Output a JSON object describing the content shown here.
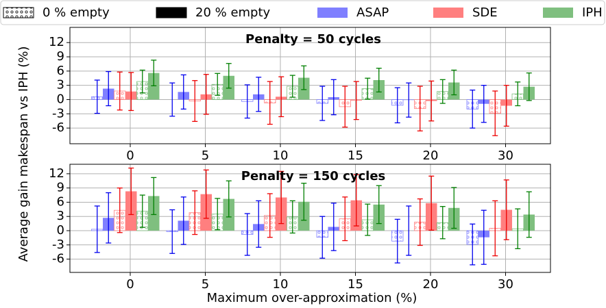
{
  "chart_data": {
    "type": "bar",
    "xlabel": "Maximum over-approximation (%)",
    "ylabel": "Average gain makespan vs IPH (%)",
    "categories": [
      "0",
      "5",
      "10",
      "15",
      "20",
      "30"
    ],
    "variants": [
      "0 % empty",
      "20 % empty"
    ],
    "variant_colors": [
      "#ffffff",
      "#000000"
    ],
    "methods": [
      {
        "name": "ASAP",
        "color": "#7f7fff",
        "edge": "#0000ee"
      },
      {
        "name": "SDE",
        "color": "#ff7f7f",
        "edge": "#ee0000"
      },
      {
        "name": "IPH",
        "color": "#7fbf7f",
        "edge": "#007f00"
      }
    ],
    "grid": true,
    "yticks": [
      -6,
      -3,
      0,
      3,
      6,
      9,
      12
    ],
    "panels": [
      {
        "title": "Penalty = 50 cycles",
        "ylim": [
          -9.3,
          15.2
        ],
        "series": [
          {
            "variants": [
              {
                "values": [
                  0.6,
                  0,
                  -0.4,
                  -0.8,
                  -1.2,
                  -2.0
                ],
                "errors": [
                  3.5,
                  3.5,
                  3.5,
                  3.6,
                  3.7,
                  4.0
                ]
              },
              {
                "values": [
                  2.3,
                  1.6,
                  1.1,
                  0.5,
                  -0.1,
                  -0.9
                ],
                "errors": [
                  3.6,
                  3.6,
                  3.6,
                  3.7,
                  3.6,
                  3.9
                ]
              }
            ]
          },
          {
            "variants": [
              {
                "values": [
                  1.8,
                  -0.3,
                  -0.7,
                  -1.5,
                  -1.9,
                  -2.9
                ],
                "errors": [
                  4.0,
                  4.3,
                  4.5,
                  4.3,
                  4.7,
                  4.7
                ]
              },
              {
                "values": [
                  1.7,
                  1.1,
                  0.6,
                  -0.2,
                  -0.3,
                  -1.3
                ],
                "errors": [
                  4.0,
                  4.2,
                  4.2,
                  4.0,
                  4.2,
                  4.3
                ]
              }
            ]
          },
          {
            "variants": [
              {
                "values": [
                  3.8,
                  3.2,
                  2.8,
                  2.3,
                  1.7,
                  1.2
                ],
                "errors": [
                  2.4,
                  2.3,
                  2.3,
                  2.2,
                  2.5,
                  2.5
                ]
              },
              {
                "values": [
                  5.6,
                  5.0,
                  4.6,
                  4.1,
                  3.6,
                  2.7
                ],
                "errors": [
                  2.7,
                  2.6,
                  2.5,
                  2.5,
                  2.6,
                  2.9
                ]
              }
            ]
          }
        ]
      },
      {
        "title": "Penalty = 150 cycles",
        "ylim": [
          -8.8,
          14
        ],
        "series": [
          {
            "variants": [
              {
                "values": [
                  0.3,
                  -0.2,
                  -0.8,
                  -1.4,
                  -2.2,
                  -2.9
                ],
                "errors": [
                  4.9,
                  4.6,
                  4.4,
                  4.4,
                  4.6,
                  4.3
                ]
              },
              {
                "values": [
                  2.7,
                  2.1,
                  1.4,
                  0.8,
                  0.0,
                  -1.4
                ],
                "errors": [
                  5.3,
                  5.0,
                  4.9,
                  5.0,
                  5.2,
                  5.7
                ]
              }
            ]
          },
          {
            "variants": [
              {
                "values": [
                  4.3,
                  3.8,
                  3.2,
                  2.5,
                  1.8,
                  0.5
                ],
                "errors": [
                  4.7,
                  4.6,
                  4.6,
                  4.6,
                  4.9,
                  5.8
                ]
              },
              {
                "values": [
                  8.3,
                  7.7,
                  7.0,
                  6.4,
                  5.8,
                  4.4
                ],
                "errors": [
                  4.9,
                  5.1,
                  5.5,
                  5.4,
                  5.7,
                  6.3
                ]
              }
            ]
          },
          {
            "variants": [
              {
                "values": [
                  4.1,
                  3.5,
                  2.9,
                  2.3,
                  1.7,
                  0.4
                ],
                "errors": [
                  3.4,
                  3.3,
                  3.4,
                  3.3,
                  3.4,
                  4.2
                ]
              },
              {
                "values": [
                  7.3,
                  6.7,
                  6.1,
                  5.5,
                  4.8,
                  3.4
                ],
                "errors": [
                  3.9,
                  3.8,
                  3.9,
                  4.0,
                  4.3,
                  4.8
                ]
              }
            ]
          }
        ]
      }
    ]
  }
}
